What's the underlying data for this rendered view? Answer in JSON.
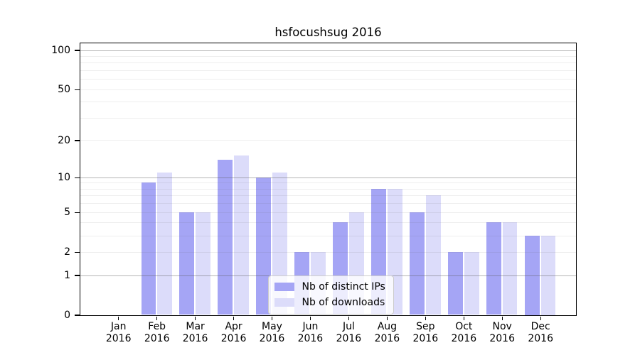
{
  "title": "hsfocushsug 2016",
  "chart_data": {
    "type": "bar",
    "title": "hsfocushsug 2016",
    "categories": [
      "Jan 2016",
      "Feb 2016",
      "Mar 2016",
      "Apr 2016",
      "May 2016",
      "Jun 2016",
      "Jul 2016",
      "Aug 2016",
      "Sep 2016",
      "Oct 2016",
      "Nov 2016",
      "Dec 2016"
    ],
    "series": [
      {
        "name": "Nb of distinct IPs",
        "color": "#a5a5f5",
        "values": [
          0,
          9,
          5,
          14,
          10,
          2,
          4,
          8,
          5,
          2,
          4,
          3
        ]
      },
      {
        "name": "Nb of downloads",
        "color": "#dcdcfa",
        "values": [
          0,
          11,
          5,
          15,
          11,
          2,
          5,
          8,
          7,
          2,
          4,
          3
        ]
      }
    ],
    "xlabel": "",
    "ylabel": "",
    "yticks": [
      0,
      1,
      2,
      5,
      10,
      20,
      50,
      100
    ],
    "y_scale": "log10(1+x)",
    "ylim": [
      0,
      112
    ],
    "grid": "horizontal major at 1,10,100 and log minors, drawn over bars",
    "legend_position": "bottom-center",
    "colors": {
      "major_grid": "#8a8a8a",
      "minor_grid": "#e9e9e9",
      "axis": "#000000",
      "background": "#ffffff"
    }
  }
}
